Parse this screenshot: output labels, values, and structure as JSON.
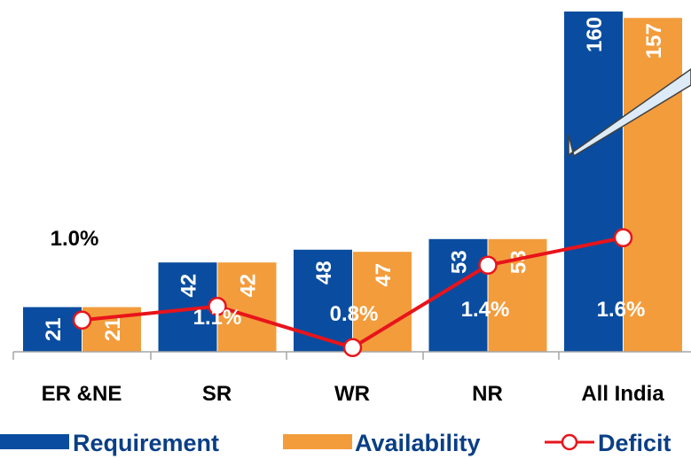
{
  "chart_data": {
    "type": "bar",
    "categories": [
      "ER &NE",
      "SR",
      "WR",
      "NR",
      "All India"
    ],
    "series": [
      {
        "name": "Requirement",
        "values": [
          21,
          42,
          48,
          53,
          160
        ],
        "color": "#0A4DA0"
      },
      {
        "name": "Availability",
        "values": [
          21,
          42,
          47,
          53,
          157
        ],
        "color": "#F39C3C"
      }
    ],
    "line_series": {
      "name": "Deficit",
      "values": [
        1.0,
        1.1,
        0.8,
        1.4,
        1.6
      ],
      "labels": [
        "1.0%",
        "1.1%",
        "0.8%",
        "1.4%",
        "1.6%"
      ],
      "color": "#E8141B"
    },
    "ylim": [
      0,
      165
    ],
    "grid": false,
    "legend": "bottom"
  }
}
